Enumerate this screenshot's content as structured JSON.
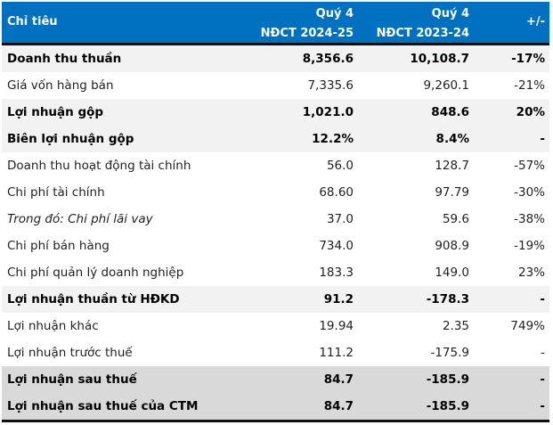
{
  "header": {
    "label": "Chỉ tiêu",
    "col1_line1": "Quý 4",
    "col1_line2": "NĐCT 2024-25",
    "col2_line1": "Quý 4",
    "col2_line2": "NĐCT 2023-24",
    "col3": "+/-"
  },
  "rows": [
    {
      "label": "Doanh thu thuần",
      "v1": "8,356.6",
      "v2": "10,108.7",
      "chg": "-17%"
    },
    {
      "label": "Giá vốn hàng bán",
      "v1": "7,335.6",
      "v2": "9,260.1",
      "chg": "-21%"
    },
    {
      "label": "Lợi nhuận gộp",
      "v1": "1,021.0",
      "v2": "848.6",
      "chg": "20%"
    },
    {
      "label": "Biên lợi nhuận gộp",
      "v1": "12.2%",
      "v2": "8.4%",
      "chg": "-"
    },
    {
      "label": "Doanh thu hoạt động tài chính",
      "v1": "56.0",
      "v2": "128.7",
      "chg": "-57%"
    },
    {
      "label": "Chi phí tài chính",
      "v1": "68.60",
      "v2": "97.79",
      "chg": "-30%"
    },
    {
      "label": "Trong đó: Chi phí lãi vay",
      "v1": "37.0",
      "v2": "59.6",
      "chg": "-38%"
    },
    {
      "label": "Chi phí bán hàng",
      "v1": "734.0",
      "v2": "908.9",
      "chg": "-19%"
    },
    {
      "label": "Chi phí quản lý doanh nghiệp",
      "v1": "183.3",
      "v2": "149.0",
      "chg": "23%"
    },
    {
      "label": "Lợi nhuận thuần từ HĐKD",
      "v1": "91.2",
      "v2": "-178.3",
      "chg": "-"
    },
    {
      "label": "Lợi nhuận khác",
      "v1": "19.94",
      "v2": "2.35",
      "chg": "749%"
    },
    {
      "label": "Lợi nhuận trước thuế",
      "v1": "111.2",
      "v2": "-175.9",
      "chg": "-"
    },
    {
      "label": "Lợi nhuận sau thuế",
      "v1": "84.7",
      "v2": "-185.9",
      "chg": "-"
    },
    {
      "label": "Lợi nhuận sau thuế của CTM",
      "v1": "84.7",
      "v2": "-185.9",
      "chg": "-"
    }
  ],
  "colors": {
    "header_bg": "#0070c0",
    "highlight": "#f2f2f2",
    "total": "#d9d9d9"
  }
}
